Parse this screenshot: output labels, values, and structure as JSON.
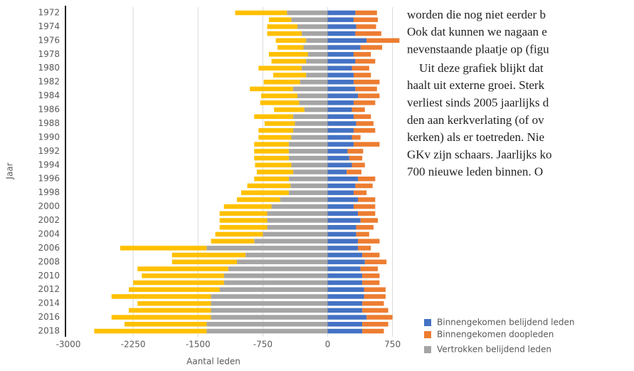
{
  "chart_data": {
    "type": "stacked-hbar",
    "ylabel": "Jaar",
    "xlabel": "Aantal leden",
    "categories": [
      "1972",
      null,
      "1974",
      null,
      "1976",
      null,
      "1978",
      null,
      "1980",
      null,
      "1982",
      null,
      "1984",
      null,
      "1986",
      null,
      "1988",
      null,
      "1990",
      null,
      "1992",
      null,
      "1994",
      null,
      "1996",
      null,
      "1998",
      null,
      "2000",
      null,
      "2002",
      null,
      "2004",
      null,
      "2006",
      null,
      "2008",
      null,
      "2010",
      null,
      "2012",
      null,
      "2014",
      null,
      "2016",
      null,
      "2018"
    ],
    "series": [
      {
        "name": "Binnengekomen belijdend leden",
        "color": "#4472c4",
        "values": [
          320,
          300,
          330,
          320,
          450,
          380,
          300,
          320,
          280,
          300,
          300,
          320,
          350,
          300,
          280,
          300,
          330,
          300,
          280,
          300,
          230,
          250,
          280,
          220,
          350,
          320,
          300,
          350,
          300,
          350,
          380,
          330,
          330,
          350,
          350,
          400,
          430,
          380,
          400,
          400,
          420,
          420,
          400,
          400,
          450,
          400,
          400
        ]
      },
      {
        "name": "Binnengekomen doopleden",
        "color": "#ed7d31",
        "values": [
          250,
          280,
          230,
          300,
          380,
          250,
          200,
          230,
          200,
          200,
          300,
          250,
          250,
          250,
          150,
          200,
          200,
          250,
          100,
          300,
          180,
          150,
          150,
          170,
          200,
          200,
          150,
          200,
          250,
          200,
          200,
          200,
          150,
          250,
          150,
          200,
          250,
          200,
          200,
          200,
          250,
          250,
          250,
          300,
          300,
          300,
          250
        ]
      },
      {
        "name": "Vertrokken belijdend leden",
        "color": "#a5a5a5",
        "values": [
          -470,
          -420,
          -350,
          -300,
          -250,
          -280,
          -230,
          -250,
          -300,
          -250,
          -320,
          -400,
          -350,
          -330,
          -270,
          -400,
          -380,
          -400,
          -420,
          -450,
          -450,
          -450,
          -420,
          -400,
          -450,
          -430,
          -450,
          -550,
          -650,
          -700,
          -700,
          -700,
          -750,
          -850,
          -1400,
          -950,
          -1050,
          -1150,
          -1200,
          -1200,
          -1250,
          -1350,
          -1350,
          -1350,
          -1350,
          -1400,
          -1400
        ]
      },
      {
        "color": "#ffc000",
        "values": [
          -600,
          -260,
          -350,
          -400,
          -350,
          -300,
          -450,
          -400,
          -500,
          -380,
          -420,
          -500,
          -420,
          -450,
          -350,
          -450,
          -350,
          -400,
          -380,
          -400,
          -400,
          -400,
          -420,
          -420,
          -400,
          -500,
          -550,
          -500,
          -550,
          -550,
          -550,
          -550,
          -550,
          -500,
          -1000,
          -850,
          -750,
          -1050,
          -950,
          -1050,
          -1050,
          -1150,
          -850,
          -950,
          -1150,
          -950,
          -1300
        ]
      }
    ],
    "xlim": [
      -3000,
      860
    ],
    "xticks": [
      -3000,
      -2250,
      -1500,
      -750,
      0,
      750
    ],
    "grid": true
  },
  "text_lines": [
    "worden die nog niet eerder b",
    "Ook dat kunnen we nagaan e",
    "nevenstaande plaatje op (figu",
    "Uit deze grafiek blijkt dat",
    "haalt uit externe groei. Sterk",
    "verliest sinds 2005 jaarlijks d",
    "den aan kerkverlating (of ov",
    "kerken) als er toetreden. Nie",
    "GKv zijn schaars. Jaarlijks ko",
    "700 nieuwe leden binnen. O"
  ]
}
